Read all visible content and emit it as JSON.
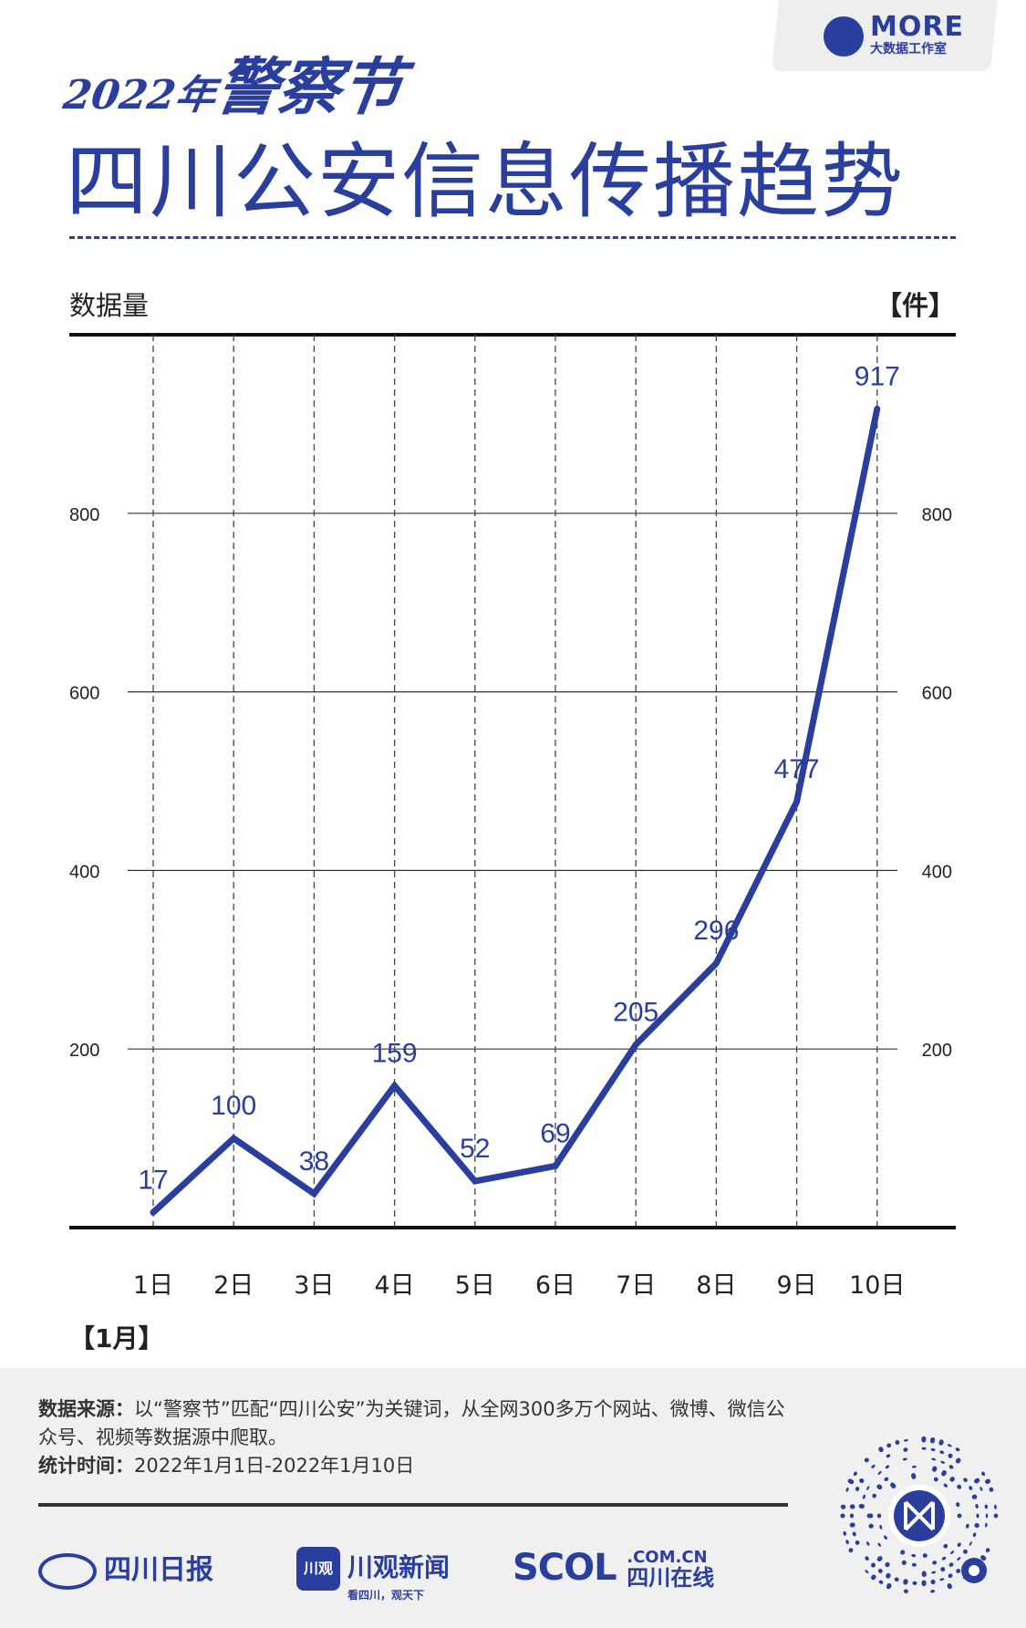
{
  "header": {
    "logo_big": "MORE",
    "logo_small": "大数据工作室",
    "year": "2022年",
    "event": "警察节",
    "title": "四川公安信息传播趋势"
  },
  "axis": {
    "left_label": "数据量",
    "right_label": "【件】",
    "x_unit_label": "【1月】"
  },
  "chart_data": {
    "type": "line",
    "categories": [
      "1日",
      "2日",
      "3日",
      "4日",
      "5日",
      "6日",
      "7日",
      "8日",
      "9日",
      "10日"
    ],
    "values": [
      17,
      100,
      38,
      159,
      52,
      69,
      205,
      296,
      477,
      917
    ],
    "yticks": [
      200,
      400,
      600,
      800
    ],
    "ylim": [
      0,
      1000
    ],
    "xlabel": "【1月】",
    "ylabel": "数据量",
    "unit": "【件】",
    "grid": true,
    "line_color": "#2a3e9e"
  },
  "footer": {
    "source_label": "数据来源：",
    "source_text": "以“警察节”匹配“四川公安”为关键词，从全网300多万个网站、微博、微信公众号、视频等数据源中爬取。",
    "time_label": "统计时间：",
    "time_text": "2022年1月1日-2022年1月10日",
    "brand1": "四川日报",
    "brand2_icon": "川观",
    "brand2": "川观新闻",
    "brand2_sub": "看四川，观天下",
    "brand3_big": "SCOL",
    "brand3_top": ".COM.CN",
    "brand3_bottom": "四川在线"
  }
}
